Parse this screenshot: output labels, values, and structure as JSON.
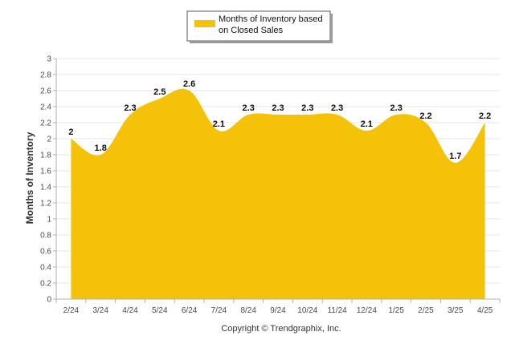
{
  "chart_data": {
    "type": "area",
    "categories": [
      "2/24",
      "3/24",
      "4/24",
      "5/24",
      "6/24",
      "7/24",
      "8/24",
      "9/24",
      "10/24",
      "11/24",
      "12/24",
      "1/25",
      "2/25",
      "3/25",
      "4/25"
    ],
    "series": [
      {
        "name": "Months of Inventory based on Closed Sales",
        "values": [
          2,
          1.8,
          2.3,
          2.5,
          2.6,
          2.1,
          2.3,
          2.3,
          2.3,
          2.3,
          2.1,
          2.3,
          2.2,
          1.7,
          2.2
        ]
      }
    ],
    "data_labels": [
      "2",
      "1.8",
      "2.3",
      "2.5",
      "2.6",
      "2.1",
      "2.3",
      "2.3",
      "2.3",
      "2.3",
      "2.1",
      "2.3",
      "2.2",
      "1.7",
      "2.2"
    ],
    "title": "",
    "xlabel": "",
    "ylabel": "Months of Inventory",
    "ylim": [
      0,
      3
    ],
    "yticks": [
      "0",
      "0.2",
      "0.4",
      "0.6",
      "0.8",
      "1",
      "1.2",
      "1.4",
      "1.6",
      "1.8",
      "2",
      "2.2",
      "2.4",
      "2.6",
      "2.8",
      "3"
    ],
    "grid": true,
    "legend_position": "top-center",
    "colors": {
      "area": "#f5c20a",
      "grid": "#e4e4e4",
      "axis": "#b0b0b0"
    }
  },
  "footer": {
    "copyright": "Copyright © Trendgraphix, Inc."
  }
}
